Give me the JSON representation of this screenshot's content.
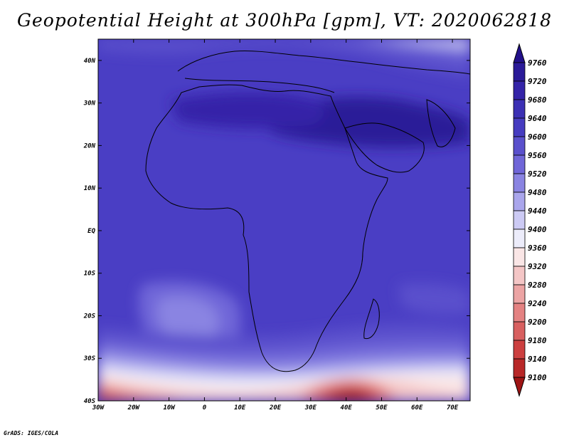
{
  "title": "Geopotential Height at 300hPa [gpm], VT: 2020062818",
  "credit": "GrADS: IGES/COLA",
  "map": {
    "lat_labels": [
      "40N",
      "30N",
      "20N",
      "10N",
      "EQ",
      "10S",
      "20S",
      "30S",
      "40S"
    ],
    "lon_labels": [
      "30W",
      "20W",
      "10W",
      "0",
      "10E",
      "20E",
      "30E",
      "40E",
      "50E",
      "60E",
      "70E"
    ]
  },
  "colorbar": {
    "levels": [
      "9760",
      "9720",
      "9680",
      "9640",
      "9600",
      "9560",
      "9520",
      "9480",
      "9440",
      "9400",
      "9360",
      "9320",
      "9280",
      "9240",
      "9200",
      "9180",
      "9140",
      "9100"
    ],
    "colors": [
      "#22108a",
      "#2a1a98",
      "#3424a8",
      "#3c30b4",
      "#463cc0",
      "#5a50cc",
      "#7066d8",
      "#8a84e2",
      "#aaa6ec",
      "#cccaf4",
      "#ececfa",
      "#fae6e6",
      "#f4c6c6",
      "#eca4a4",
      "#e48282",
      "#d86060",
      "#cc4040",
      "#b82828",
      "#9e1414"
    ]
  }
}
